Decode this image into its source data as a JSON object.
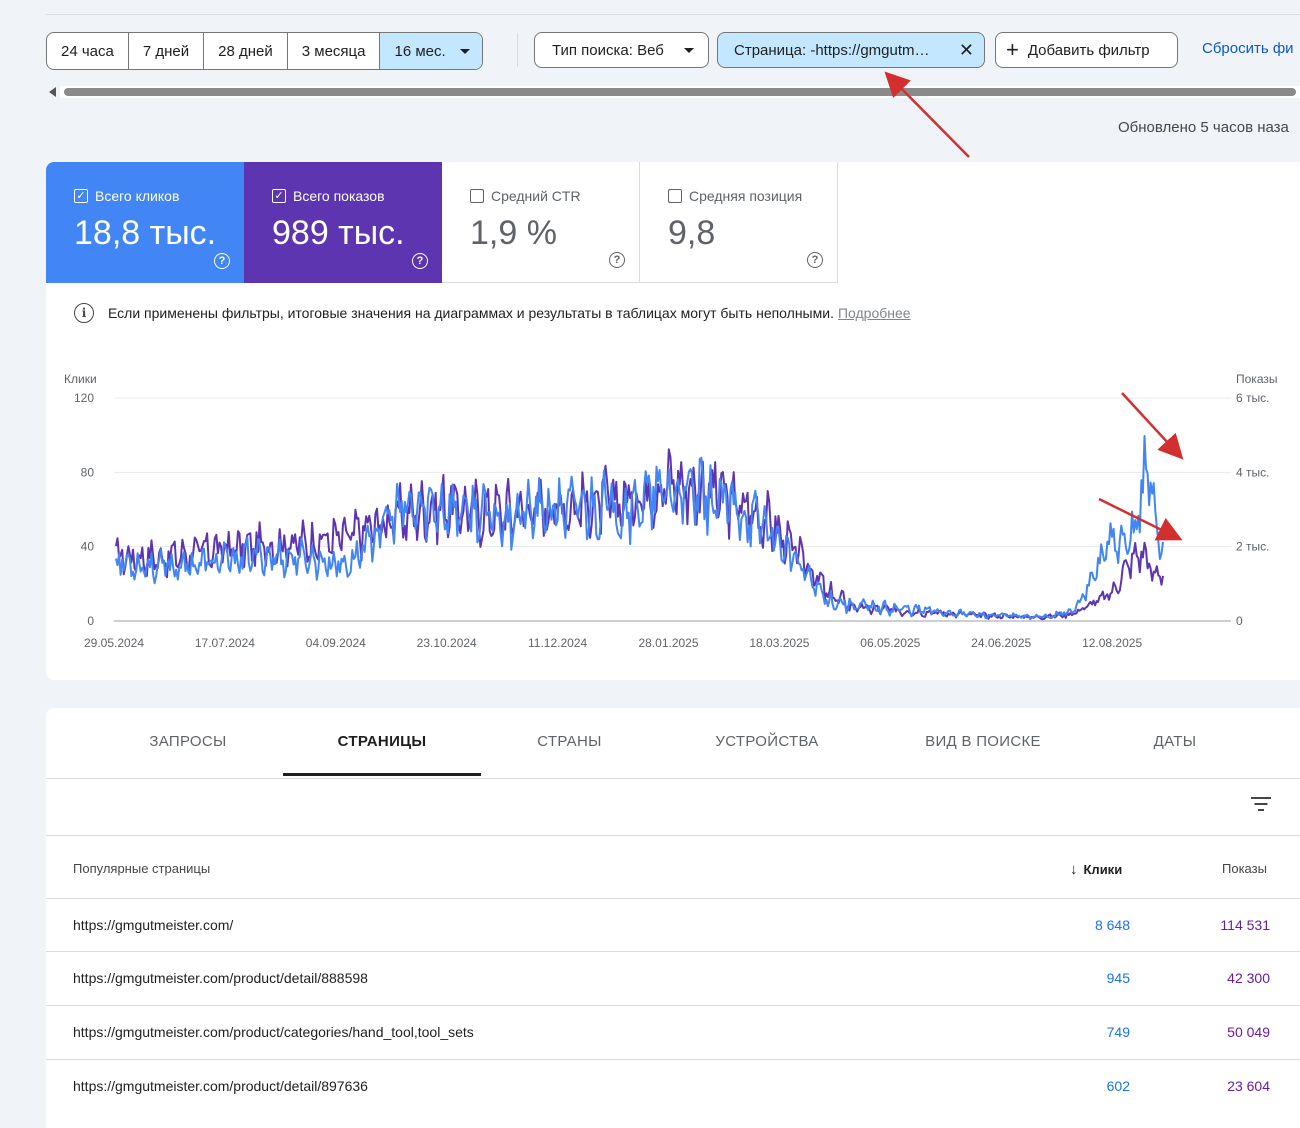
{
  "date_range": {
    "items": [
      "24 часа",
      "7 дней",
      "28 дней",
      "3 месяца",
      "16 мес."
    ],
    "active_index": 4
  },
  "filters": {
    "search_type": "Тип поиска: Веб",
    "page": "Страница: -https://gmgutm…",
    "add": "Добавить фильтр",
    "reset": "Сбросить фи"
  },
  "updated": "Обновлено 5 часов наза",
  "metrics": {
    "clicks": {
      "label": "Всего кликов",
      "value": "18,8 тыс.",
      "checked": true
    },
    "impressions": {
      "label": "Всего показов",
      "value": "989 тыс.",
      "checked": true
    },
    "ctr": {
      "label": "Средний CTR",
      "value": "1,9 %",
      "checked": false
    },
    "position": {
      "label": "Средняя позиция",
      "value": "9,8",
      "checked": false
    }
  },
  "notice": {
    "text": "Если применены фильтры, итоговые значения на диаграммах и результаты в таблицах могут быть неполными.",
    "link": "Подробнее"
  },
  "chart_data": {
    "type": "line",
    "y_left_label": "Клики",
    "y_right_label": "Показы",
    "y_left_ticks": [
      "0",
      "40",
      "80",
      "120"
    ],
    "y_right_ticks": [
      "0",
      "2 тыс.",
      "4 тыс.",
      "6 тыс."
    ],
    "ylim_left": [
      0,
      120
    ],
    "ylim_right": [
      0,
      6000
    ],
    "x_ticks": [
      "29.05.2024",
      "17.07.2024",
      "04.09.2024",
      "23.10.2024",
      "11.12.2024",
      "28.01.2025",
      "18.03.2025",
      "06.05.2025",
      "24.06.2025",
      "12.08.2025"
    ],
    "series": [
      {
        "name": "Клики",
        "color": "#5e35b1",
        "axis": "left",
        "anchors": [
          [
            0,
            35
          ],
          [
            30,
            34
          ],
          [
            60,
            38
          ],
          [
            90,
            40
          ],
          [
            120,
            42
          ],
          [
            150,
            45
          ],
          [
            180,
            55
          ],
          [
            210,
            62
          ],
          [
            240,
            58
          ],
          [
            270,
            60
          ],
          [
            300,
            62
          ],
          [
            330,
            65
          ],
          [
            360,
            75
          ],
          [
            390,
            68
          ],
          [
            420,
            55
          ],
          [
            448,
            30
          ],
          [
            460,
            15
          ],
          [
            480,
            7
          ],
          [
            520,
            5
          ],
          [
            560,
            3
          ],
          [
            600,
            2
          ],
          [
            620,
            4
          ],
          [
            645,
            15
          ],
          [
            655,
            30
          ],
          [
            665,
            38
          ],
          [
            672,
            24
          ],
          [
            678,
            28
          ]
        ]
      },
      {
        "name": "Показы",
        "color": "#4285f4",
        "axis": "right",
        "anchors": [
          [
            0,
            1600
          ],
          [
            30,
            1450
          ],
          [
            60,
            1550
          ],
          [
            90,
            1750
          ],
          [
            120,
            1700
          ],
          [
            150,
            1500
          ],
          [
            180,
            2900
          ],
          [
            210,
            3100
          ],
          [
            240,
            2800
          ],
          [
            270,
            2900
          ],
          [
            300,
            3100
          ],
          [
            330,
            3050
          ],
          [
            360,
            3500
          ],
          [
            390,
            3200
          ],
          [
            420,
            2600
          ],
          [
            448,
            1200
          ],
          [
            460,
            600
          ],
          [
            480,
            400
          ],
          [
            520,
            300
          ],
          [
            560,
            160
          ],
          [
            600,
            110
          ],
          [
            620,
            260
          ],
          [
            630,
            900
          ],
          [
            642,
            2100
          ],
          [
            655,
            1900
          ],
          [
            662,
            3000
          ],
          [
            668,
            4250
          ],
          [
            674,
            2600
          ],
          [
            678,
            1800
          ]
        ]
      }
    ]
  },
  "tabs": [
    "ЗАПРОСЫ",
    "СТРАНИЦЫ",
    "СТРАНЫ",
    "УСТРОЙСТВА",
    "ВИД В ПОИСКЕ",
    "ДАТЫ"
  ],
  "active_tab": 1,
  "table": {
    "headers": {
      "page": "Популярные страницы",
      "clicks": "Клики",
      "impressions": "Показы"
    },
    "rows": [
      {
        "url": "https://gmgutmeister.com/",
        "clicks": "8 648",
        "impressions": "114 531"
      },
      {
        "url": "https://gmgutmeister.com/product/detail/888598",
        "clicks": "945",
        "impressions": "42 300"
      },
      {
        "url": "https://gmgutmeister.com/product/categories/hand_tool,tool_sets",
        "clicks": "749",
        "impressions": "50 049"
      },
      {
        "url": "https://gmgutmeister.com/product/detail/897636",
        "clicks": "602",
        "impressions": "23 604"
      }
    ]
  }
}
